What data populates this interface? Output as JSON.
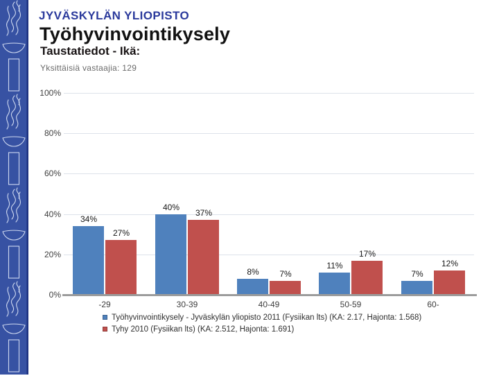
{
  "header": {
    "university": "JYVÄSKYLÄN YLIOPISTO",
    "title": "Työhyvinvointikysely",
    "subtitle": "Taustatiedot - Ikä:",
    "respondents_label": "Yksittäisiä vastaajia: 129"
  },
  "colors": {
    "strip_blue": "#3752a3",
    "strip_edge": "#1d3280",
    "logo_stroke": "#cfd9f0",
    "series1_blue": "#4f81bd",
    "series2_red": "#c0504d",
    "gridline": "#dde2ea",
    "axis_line": "#9c9c9c",
    "university_blue": "#2b3a9c"
  },
  "chart_data": {
    "type": "bar",
    "title": "",
    "xlabel": "",
    "ylabel": "",
    "categories": [
      "-29",
      "30-39",
      "40-49",
      "50-59",
      "60-"
    ],
    "series": [
      {
        "name": "Työhyvinvointikysely - Jyväskylän yliopisto 2011 (Fysiikan lts) (KA: 2.17, Hajonta: 1.568)",
        "color": "#4f81bd",
        "values": [
          34,
          40,
          8,
          11,
          7
        ]
      },
      {
        "name": "Tyhy 2010 (Fysiikan lts) (KA: 2.512, Hajonta: 1.691)",
        "color": "#c0504d",
        "values": [
          27,
          37,
          7,
          17,
          12
        ]
      }
    ],
    "value_labels": [
      [
        "34%",
        "40%",
        "8%",
        "11%",
        "7%"
      ],
      [
        "27%",
        "37%",
        "7%",
        "17%",
        "12%"
      ]
    ],
    "y_ticks": [
      "100%",
      "80%",
      "60%",
      "40%",
      "20%",
      "0%"
    ],
    "ylim": [
      0,
      100
    ],
    "grid": true,
    "legend_position": "bottom"
  }
}
